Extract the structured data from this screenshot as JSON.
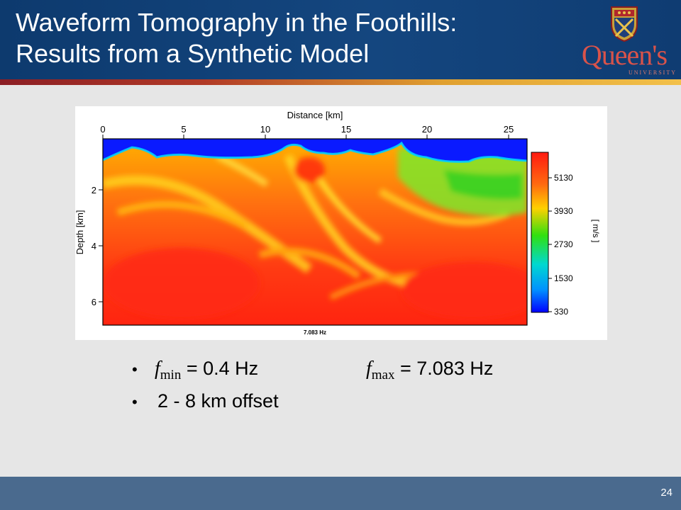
{
  "slide": {
    "title_line1": "Waveform Tomography in the Foothills:",
    "title_line2": "Results from a Synthetic Model",
    "logo_text": "Queen's",
    "logo_subtext": "UNIVERSITY",
    "page_number": "24"
  },
  "figure": {
    "top_label": "Distance [km]",
    "x_ticks": [
      "0",
      "5",
      "10",
      "15",
      "20",
      "25"
    ],
    "y_label": "Depth [km]",
    "y_ticks": [
      "2",
      "4",
      "6"
    ],
    "bottom_label": "7.083 Hz",
    "colorbar_unit": "[ m/s ]",
    "colorbar_ticks": [
      "5130",
      "3930",
      "2730",
      "1530",
      "330"
    ]
  },
  "bullets": {
    "fmin_symbol": "f",
    "fmin_sub": "min",
    "fmin_value": " = 0.4 Hz",
    "fmax_symbol": "f",
    "fmax_sub": "max",
    "fmax_value": " = 7.083 Hz",
    "offset_text": "2 - 8 km offset",
    "bullet_char": "•"
  },
  "colors": {
    "header_blue": "#14467f",
    "footer_blue": "#4a6a8e",
    "velocity_high": "#ff2a1a",
    "velocity_low": "#0000ff"
  }
}
